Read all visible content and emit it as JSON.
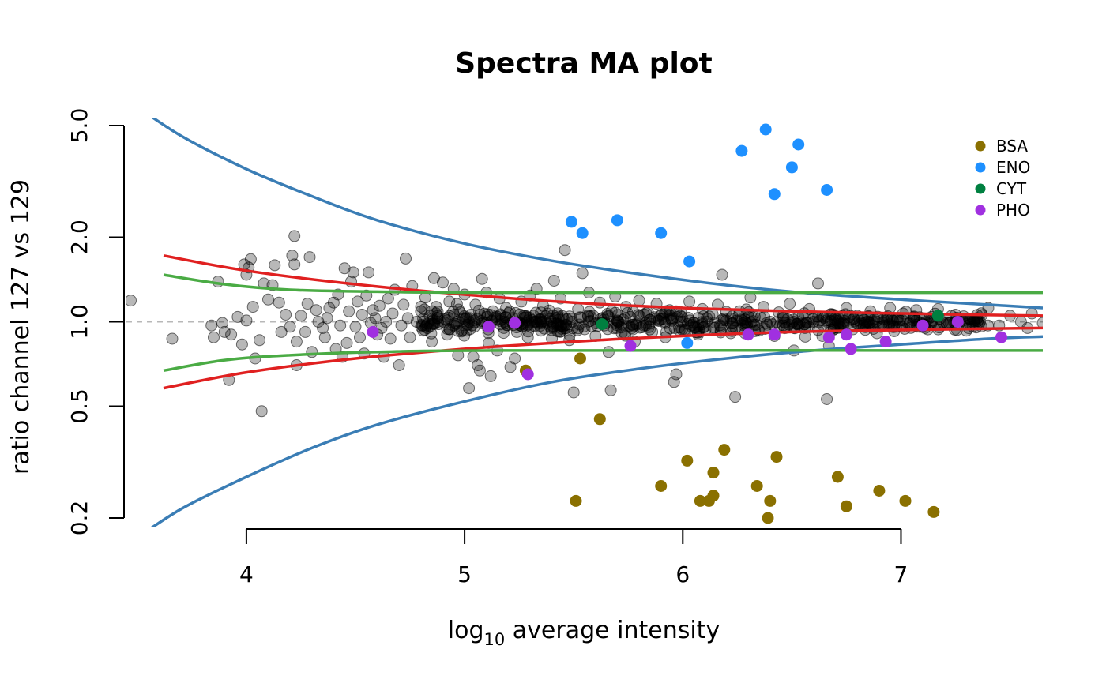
{
  "chart_data": {
    "type": "scatter",
    "title": "Spectra MA plot",
    "xlabel": "average intensity",
    "xlabel_prefix": "log",
    "xlabel_subscript": "10",
    "ylabel": "ratio channel 127 vs 129",
    "y_scale": "log",
    "xlim": [
      3.45,
      7.65
    ],
    "ylim": [
      0.185,
      5.3
    ],
    "x_ticks": [
      4,
      5,
      6,
      7
    ],
    "x_tick_labels": [
      "4",
      "5",
      "6",
      "7"
    ],
    "y_ticks": [
      0.2,
      0.5,
      1.0,
      2.0,
      5.0
    ],
    "y_tick_labels": [
      "0.2",
      "0.5",
      "1.0",
      "2.0",
      "5.0"
    ],
    "reference_line": {
      "y": 1.0,
      "style": "dashed",
      "color": "#bbbbbb"
    },
    "legend": {
      "placement": "top-right",
      "entries": [
        {
          "label": "BSA",
          "color": "#8a7000"
        },
        {
          "label": "ENO",
          "color": "#1e90ff"
        },
        {
          "label": "CYT",
          "color": "#008040"
        },
        {
          "label": "PHO",
          "color": "#a030e0"
        }
      ]
    },
    "background_points_color": "#000000",
    "background_points_opacity": 0.28,
    "background_points": [
      [
        3.47,
        1.19
      ],
      [
        3.66,
        0.87
      ],
      [
        3.84,
        0.97
      ],
      [
        3.85,
        0.88
      ],
      [
        3.87,
        1.39
      ],
      [
        3.89,
        0.99
      ],
      [
        3.9,
        0.92
      ],
      [
        3.92,
        0.62
      ],
      [
        3.93,
        0.9
      ],
      [
        3.96,
        1.04
      ],
      [
        3.98,
        0.83
      ],
      [
        3.99,
        1.6
      ],
      [
        4.0,
        1.01
      ],
      [
        4.0,
        1.47
      ],
      [
        4.01,
        1.56
      ],
      [
        4.02,
        1.67
      ],
      [
        4.03,
        1.13
      ],
      [
        4.04,
        0.74
      ],
      [
        4.06,
        0.86
      ],
      [
        4.07,
        0.48
      ],
      [
        4.08,
        1.37
      ],
      [
        4.1,
        1.2
      ],
      [
        4.12,
        1.35
      ],
      [
        4.13,
        1.59
      ],
      [
        4.15,
        1.17
      ],
      [
        4.16,
        0.92
      ],
      [
        4.18,
        1.06
      ],
      [
        4.2,
        0.96
      ],
      [
        4.21,
        1.72
      ],
      [
        4.22,
        1.6
      ],
      [
        4.22,
        2.02
      ],
      [
        4.23,
        0.85
      ],
      [
        4.23,
        0.7
      ],
      [
        4.25,
        1.05
      ],
      [
        4.27,
        0.92
      ],
      [
        4.28,
        1.16
      ],
      [
        4.29,
        1.7
      ],
      [
        4.3,
        0.78
      ],
      [
        4.32,
        1.1
      ],
      [
        4.33,
        1.0
      ],
      [
        4.35,
        0.95
      ],
      [
        4.36,
        0.88
      ],
      [
        4.37,
        1.03
      ],
      [
        4.38,
        1.12
      ],
      [
        4.4,
        1.17
      ],
      [
        4.41,
        0.8
      ],
      [
        4.42,
        1.25
      ],
      [
        4.43,
        0.97
      ],
      [
        4.44,
        0.75
      ],
      [
        4.45,
        1.55
      ],
      [
        4.46,
        0.84
      ],
      [
        4.47,
        1.09
      ],
      [
        4.48,
        1.39
      ],
      [
        4.49,
        1.5
      ],
      [
        4.5,
        0.96
      ],
      [
        4.51,
        1.18
      ],
      [
        4.52,
        0.88
      ],
      [
        4.53,
        1.06
      ],
      [
        4.54,
        0.77
      ],
      [
        4.55,
        1.24
      ],
      [
        4.56,
        1.5
      ],
      [
        4.57,
        0.99
      ],
      [
        4.58,
        1.1
      ],
      [
        4.59,
        1.03
      ],
      [
        4.6,
        0.9
      ],
      [
        4.61,
        1.14
      ],
      [
        4.62,
        0.95
      ],
      [
        4.63,
        0.75
      ],
      [
        4.64,
        1.0
      ],
      [
        4.65,
        1.21
      ],
      [
        4.66,
        0.87
      ],
      [
        4.67,
        1.07
      ],
      [
        4.68,
        1.3
      ],
      [
        4.7,
        0.7
      ],
      [
        4.71,
        0.97
      ],
      [
        4.72,
        1.15
      ],
      [
        4.73,
        1.68
      ],
      [
        4.74,
        1.03
      ],
      [
        4.75,
        0.88
      ],
      [
        4.76,
        1.34
      ],
      [
        4.78,
        1.0
      ],
      [
        4.8,
        1.09
      ],
      [
        4.81,
        0.93
      ],
      [
        4.82,
        1.22
      ],
      [
        4.84,
        1.05
      ],
      [
        4.85,
        0.85
      ],
      [
        4.86,
        1.43
      ],
      [
        4.87,
        1.13
      ],
      [
        4.88,
        0.98
      ],
      [
        4.9,
        1.38
      ],
      [
        4.91,
        1.02
      ],
      [
        4.92,
        0.9
      ],
      [
        4.93,
        1.18
      ],
      [
        4.95,
        1.31
      ],
      [
        4.96,
        0.96
      ],
      [
        4.97,
        0.76
      ],
      [
        4.98,
        1.08
      ],
      [
        5.0,
        1.25
      ],
      [
        5.01,
        0.93
      ],
      [
        5.02,
        0.58
      ],
      [
        5.03,
        1.06
      ],
      [
        5.04,
        0.75
      ],
      [
        5.05,
        1.15
      ],
      [
        5.06,
        0.7
      ],
      [
        5.07,
        0.67
      ],
      [
        5.08,
        1.42
      ],
      [
        5.09,
        0.99
      ],
      [
        5.1,
        1.27
      ],
      [
        5.11,
        0.84
      ],
      [
        5.12,
        0.64
      ],
      [
        5.13,
        1.09
      ],
      [
        5.15,
        0.79
      ],
      [
        5.16,
        1.21
      ],
      [
        5.18,
        0.95
      ],
      [
        5.19,
        1.12
      ],
      [
        5.21,
        0.69
      ],
      [
        5.22,
        1.03
      ],
      [
        5.23,
        0.74
      ],
      [
        5.24,
        0.92
      ],
      [
        5.26,
        1.18
      ],
      [
        5.27,
        1.05
      ],
      [
        5.29,
        0.88
      ],
      [
        5.3,
        1.24
      ],
      [
        5.32,
        1.0
      ],
      [
        5.33,
        1.31
      ],
      [
        5.35,
        0.93
      ],
      [
        5.36,
        1.14
      ],
      [
        5.38,
        1.07
      ],
      [
        5.4,
        0.87
      ],
      [
        5.41,
        1.4
      ],
      [
        5.43,
        0.98
      ],
      [
        5.44,
        1.21
      ],
      [
        5.46,
        1.8
      ],
      [
        5.47,
        1.02
      ],
      [
        5.48,
        0.86
      ],
      [
        5.5,
        0.56
      ],
      [
        5.52,
        1.11
      ],
      [
        5.54,
        1.49
      ],
      [
        5.55,
        0.94
      ],
      [
        5.57,
        1.27
      ],
      [
        5.59,
        1.05
      ],
      [
        5.6,
        0.89
      ],
      [
        5.62,
        1.17
      ],
      [
        5.64,
        0.97
      ],
      [
        5.66,
        0.78
      ],
      [
        5.67,
        0.57
      ],
      [
        5.69,
        1.23
      ],
      [
        5.7,
        1.01
      ],
      [
        5.72,
        0.91
      ],
      [
        5.74,
        1.13
      ],
      [
        5.76,
        1.04
      ],
      [
        5.78,
        0.85
      ],
      [
        5.8,
        1.19
      ],
      [
        5.82,
        0.97
      ],
      [
        5.84,
        1.08
      ],
      [
        5.86,
        0.92
      ],
      [
        5.88,
        1.16
      ],
      [
        5.9,
        1.02
      ],
      [
        5.92,
        0.88
      ],
      [
        5.94,
        1.1
      ],
      [
        5.96,
        0.61
      ],
      [
        5.97,
        0.65
      ],
      [
        5.99,
        1.05
      ],
      [
        6.01,
        0.93
      ],
      [
        6.03,
        1.18
      ],
      [
        6.05,
        0.99
      ],
      [
        6.07,
        0.9
      ],
      [
        6.09,
        1.11
      ],
      [
        6.11,
        1.03
      ],
      [
        6.14,
        0.95
      ],
      [
        6.16,
        1.15
      ],
      [
        6.18,
        1.47
      ],
      [
        6.2,
        1.01
      ],
      [
        6.22,
        0.91
      ],
      [
        6.24,
        0.54
      ],
      [
        6.26,
        1.09
      ],
      [
        6.28,
        0.97
      ],
      [
        6.31,
        1.22
      ],
      [
        6.33,
        1.04
      ],
      [
        6.35,
        0.93
      ],
      [
        6.37,
        1.13
      ],
      [
        6.4,
        1.0
      ],
      [
        6.42,
        0.89
      ],
      [
        6.44,
        1.08
      ],
      [
        6.46,
        0.97
      ],
      [
        6.49,
        1.16
      ],
      [
        6.51,
        0.79
      ],
      [
        6.53,
        1.04
      ],
      [
        6.56,
        0.95
      ],
      [
        6.58,
        1.11
      ],
      [
        6.6,
        1.0
      ],
      [
        6.62,
        1.37
      ],
      [
        6.64,
        0.89
      ],
      [
        6.66,
        0.53
      ],
      [
        6.67,
        0.82
      ],
      [
        6.69,
        1.06
      ],
      [
        6.72,
        0.98
      ],
      [
        6.75,
        1.12
      ],
      [
        6.78,
        0.94
      ],
      [
        6.8,
        1.05
      ],
      [
        6.83,
        0.97
      ],
      [
        6.86,
        1.09
      ],
      [
        6.89,
        0.91
      ],
      [
        6.92,
        1.02
      ],
      [
        6.95,
        1.12
      ],
      [
        6.98,
        0.96
      ],
      [
        7.01,
        1.07
      ],
      [
        7.04,
        0.99
      ],
      [
        7.07,
        1.1
      ],
      [
        7.11,
        0.95
      ],
      [
        7.14,
        1.04
      ],
      [
        7.17,
        1.11
      ],
      [
        7.21,
        0.98
      ],
      [
        7.25,
        1.06
      ],
      [
        7.3,
        0.93
      ],
      [
        7.35,
        1.03
      ],
      [
        7.4,
        1.12
      ],
      [
        7.45,
        0.97
      ],
      [
        7.5,
        1.05
      ],
      [
        7.55,
        1.0
      ],
      [
        7.58,
        0.95
      ],
      [
        7.6,
        1.07
      ],
      [
        7.65,
        0.99
      ]
    ],
    "background_cloud": {
      "description": "dense band of overlapping grey points",
      "x_range": [
        4.8,
        7.4
      ],
      "spread_center": 1.0
    },
    "groups": [
      {
        "label": "BSA",
        "color": "#8a7000",
        "points": [
          [
            5.28,
            0.67
          ],
          [
            5.53,
            0.74
          ],
          [
            5.62,
            0.45
          ],
          [
            5.51,
            0.23
          ],
          [
            5.9,
            0.26
          ],
          [
            6.02,
            0.32
          ],
          [
            6.08,
            0.23
          ],
          [
            6.12,
            0.23
          ],
          [
            6.14,
            0.29
          ],
          [
            6.14,
            0.24
          ],
          [
            6.19,
            0.35
          ],
          [
            6.34,
            0.26
          ],
          [
            6.39,
            0.2
          ],
          [
            6.4,
            0.23
          ],
          [
            6.43,
            0.33
          ],
          [
            6.71,
            0.28
          ],
          [
            6.75,
            0.22
          ],
          [
            6.9,
            0.25
          ],
          [
            7.02,
            0.23
          ],
          [
            7.15,
            0.21
          ]
        ]
      },
      {
        "label": "ENO",
        "color": "#1e90ff",
        "points": [
          [
            5.49,
            2.27
          ],
          [
            5.54,
            2.07
          ],
          [
            5.7,
            2.3
          ],
          [
            5.9,
            2.07
          ],
          [
            6.03,
            1.64
          ],
          [
            6.27,
            4.06
          ],
          [
            6.38,
            4.84
          ],
          [
            6.42,
            2.85
          ],
          [
            6.5,
            3.55
          ],
          [
            6.53,
            4.28
          ],
          [
            6.66,
            2.95
          ],
          [
            6.02,
            0.84
          ]
        ]
      },
      {
        "label": "CYT",
        "color": "#008040",
        "points": [
          [
            5.63,
            0.98
          ],
          [
            7.17,
            1.05
          ]
        ]
      },
      {
        "label": "PHO",
        "color": "#a030e0",
        "points": [
          [
            4.58,
            0.92
          ],
          [
            5.11,
            0.96
          ],
          [
            5.23,
            0.99
          ],
          [
            5.29,
            0.65
          ],
          [
            5.76,
            0.82
          ],
          [
            6.3,
            0.9
          ],
          [
            6.42,
            0.9
          ],
          [
            6.67,
            0.88
          ],
          [
            6.75,
            0.9
          ],
          [
            6.77,
            0.8
          ],
          [
            6.93,
            0.85
          ],
          [
            7.1,
            0.97
          ],
          [
            7.26,
            1.0
          ],
          [
            7.46,
            0.88
          ]
        ]
      }
    ],
    "curves": [
      {
        "color": "#3a7db5",
        "points": [
          [
            3.45,
            6.2
          ],
          [
            3.7,
            4.6
          ],
          [
            4.0,
            3.5
          ],
          [
            4.3,
            2.8
          ],
          [
            4.6,
            2.3
          ],
          [
            5.0,
            1.9
          ],
          [
            5.4,
            1.65
          ],
          [
            5.8,
            1.48
          ],
          [
            6.2,
            1.35
          ],
          [
            6.6,
            1.26
          ],
          [
            7.0,
            1.2
          ],
          [
            7.4,
            1.15
          ],
          [
            7.65,
            1.12
          ]
        ]
      },
      {
        "color": "#3a7db5",
        "points": [
          [
            3.45,
            0.16
          ],
          [
            3.7,
            0.215
          ],
          [
            4.0,
            0.28
          ],
          [
            4.3,
            0.355
          ],
          [
            4.6,
            0.43
          ],
          [
            5.0,
            0.52
          ],
          [
            5.4,
            0.61
          ],
          [
            5.8,
            0.68
          ],
          [
            6.2,
            0.74
          ],
          [
            6.6,
            0.79
          ],
          [
            7.0,
            0.83
          ],
          [
            7.4,
            0.87
          ],
          [
            7.65,
            0.885
          ]
        ]
      },
      {
        "color": "#e02020",
        "points": [
          [
            3.62,
            1.72
          ],
          [
            4.0,
            1.52
          ],
          [
            4.5,
            1.36
          ],
          [
            5.0,
            1.25
          ],
          [
            5.5,
            1.17
          ],
          [
            6.0,
            1.12
          ],
          [
            6.5,
            1.09
          ],
          [
            7.0,
            1.07
          ],
          [
            7.65,
            1.05
          ]
        ]
      },
      {
        "color": "#e02020",
        "points": [
          [
            3.62,
            0.58
          ],
          [
            4.0,
            0.66
          ],
          [
            4.5,
            0.74
          ],
          [
            5.0,
            0.8
          ],
          [
            5.5,
            0.85
          ],
          [
            6.0,
            0.89
          ],
          [
            6.5,
            0.92
          ],
          [
            7.0,
            0.935
          ],
          [
            7.65,
            0.95
          ]
        ]
      },
      {
        "color": "#4aab44",
        "points": [
          [
            3.62,
            1.47
          ],
          [
            3.9,
            1.36
          ],
          [
            4.2,
            1.3
          ],
          [
            4.6,
            1.28
          ],
          [
            5.2,
            1.27
          ],
          [
            7.65,
            1.27
          ]
        ]
      },
      {
        "color": "#4aab44",
        "points": [
          [
            3.62,
            0.67
          ],
          [
            3.9,
            0.73
          ],
          [
            4.2,
            0.76
          ],
          [
            4.6,
            0.78
          ],
          [
            5.2,
            0.79
          ],
          [
            7.65,
            0.79
          ]
        ]
      }
    ]
  }
}
